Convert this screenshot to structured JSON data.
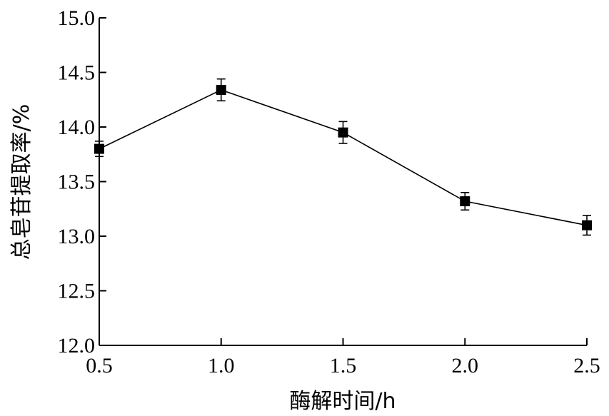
{
  "chart_data": {
    "type": "line",
    "xlabel": "酶解时间/h",
    "ylabel": "总皂苷提取率/%",
    "xlim": [
      0.5,
      2.5
    ],
    "ylim": [
      12.0,
      15.0
    ],
    "x_ticks": [
      0.5,
      1.0,
      1.5,
      2.0,
      2.5
    ],
    "y_ticks": [
      12.0,
      12.5,
      13.0,
      13.5,
      14.0,
      14.5,
      15.0
    ],
    "x_tick_labels": [
      "0.5",
      "1.0",
      "1.5",
      "2.0",
      "2.5"
    ],
    "y_tick_labels": [
      "12.0",
      "12.5",
      "13.0",
      "13.5",
      "14.0",
      "14.5",
      "15.0"
    ],
    "grid": false,
    "legend": "none",
    "series": [
      {
        "x": [
          0.5,
          1.0,
          1.5,
          2.0,
          2.5
        ],
        "y": [
          13.8,
          14.34,
          13.95,
          13.32,
          13.1
        ],
        "error": [
          0.07,
          0.1,
          0.1,
          0.08,
          0.09
        ],
        "marker": "square",
        "color": "#000000"
      }
    ]
  }
}
